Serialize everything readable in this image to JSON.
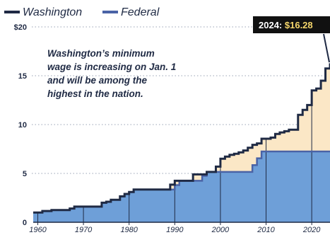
{
  "chart_data": {
    "type": "area",
    "title": "",
    "xlabel": "",
    "ylabel": "",
    "xlim": [
      1959,
      2024
    ],
    "ylim": [
      0,
      20
    ],
    "x_ticks": [
      1960,
      1970,
      1980,
      1990,
      2000,
      2010,
      2020
    ],
    "x_tick_labels": [
      "1960",
      "1970",
      "1980",
      "1990",
      "2000",
      "2010",
      "2020"
    ],
    "y_ticks": [
      0,
      5,
      10,
      15,
      20
    ],
    "y_tick_labels": [
      "0",
      "5",
      "10",
      "15",
      "$20"
    ],
    "grid": "dotted horizontal",
    "legend_position": "top-left",
    "series": [
      {
        "name": "Washington",
        "color": "#1f2a44",
        "fill": "#fbe7c6",
        "step": true,
        "points": [
          [
            1959,
            1.0
          ],
          [
            1961,
            1.15
          ],
          [
            1963,
            1.25
          ],
          [
            1967,
            1.4
          ],
          [
            1968,
            1.6
          ],
          [
            1974,
            2.0
          ],
          [
            1975,
            2.1
          ],
          [
            1976,
            2.3
          ],
          [
            1978,
            2.65
          ],
          [
            1979,
            2.9
          ],
          [
            1980,
            3.1
          ],
          [
            1981,
            3.35
          ],
          [
            1989,
            3.85
          ],
          [
            1990,
            4.25
          ],
          [
            1994,
            4.9
          ],
          [
            1997,
            5.15
          ],
          [
            1999,
            5.7
          ],
          [
            2000,
            6.5
          ],
          [
            2001,
            6.72
          ],
          [
            2002,
            6.9
          ],
          [
            2003,
            7.01
          ],
          [
            2004,
            7.16
          ],
          [
            2005,
            7.35
          ],
          [
            2006,
            7.63
          ],
          [
            2007,
            7.93
          ],
          [
            2008,
            8.07
          ],
          [
            2009,
            8.55
          ],
          [
            2011,
            8.67
          ],
          [
            2012,
            9.04
          ],
          [
            2013,
            9.19
          ],
          [
            2014,
            9.32
          ],
          [
            2015,
            9.47
          ],
          [
            2017,
            11.0
          ],
          [
            2018,
            11.5
          ],
          [
            2019,
            12.0
          ],
          [
            2020,
            13.5
          ],
          [
            2021,
            13.69
          ],
          [
            2022,
            14.49
          ],
          [
            2023,
            15.74
          ],
          [
            2024,
            16.28
          ]
        ]
      },
      {
        "name": "Federal",
        "color": "#4a63a6",
        "fill": "#6e9fd8",
        "step": true,
        "points": [
          [
            1959,
            1.0
          ],
          [
            1961,
            1.15
          ],
          [
            1963,
            1.25
          ],
          [
            1967,
            1.4
          ],
          [
            1968,
            1.6
          ],
          [
            1974,
            2.0
          ],
          [
            1975,
            2.1
          ],
          [
            1976,
            2.3
          ],
          [
            1978,
            2.65
          ],
          [
            1979,
            2.9
          ],
          [
            1980,
            3.1
          ],
          [
            1981,
            3.35
          ],
          [
            1990,
            3.8
          ],
          [
            1991,
            4.25
          ],
          [
            1996,
            4.75
          ],
          [
            1997,
            5.15
          ],
          [
            2007,
            5.85
          ],
          [
            2008,
            6.55
          ],
          [
            2009,
            7.25
          ],
          [
            2024,
            7.25
          ]
        ]
      }
    ],
    "annotations": [
      {
        "text_lines": [
          "Washington’s minimum",
          "wage is increasing on Jan. 1",
          "and will be among the",
          "highest in the nation."
        ]
      },
      {
        "callout_prefix": "2024: ",
        "callout_value": "$16.28",
        "year": 2024,
        "value": 16.28
      }
    ]
  },
  "colors": {
    "axis_text": "#1f2a44",
    "grid": "#9aa3b5",
    "callout_bg": "#111111",
    "callout_value": "#f5d66b",
    "callout_prefix": "#ffffff"
  }
}
